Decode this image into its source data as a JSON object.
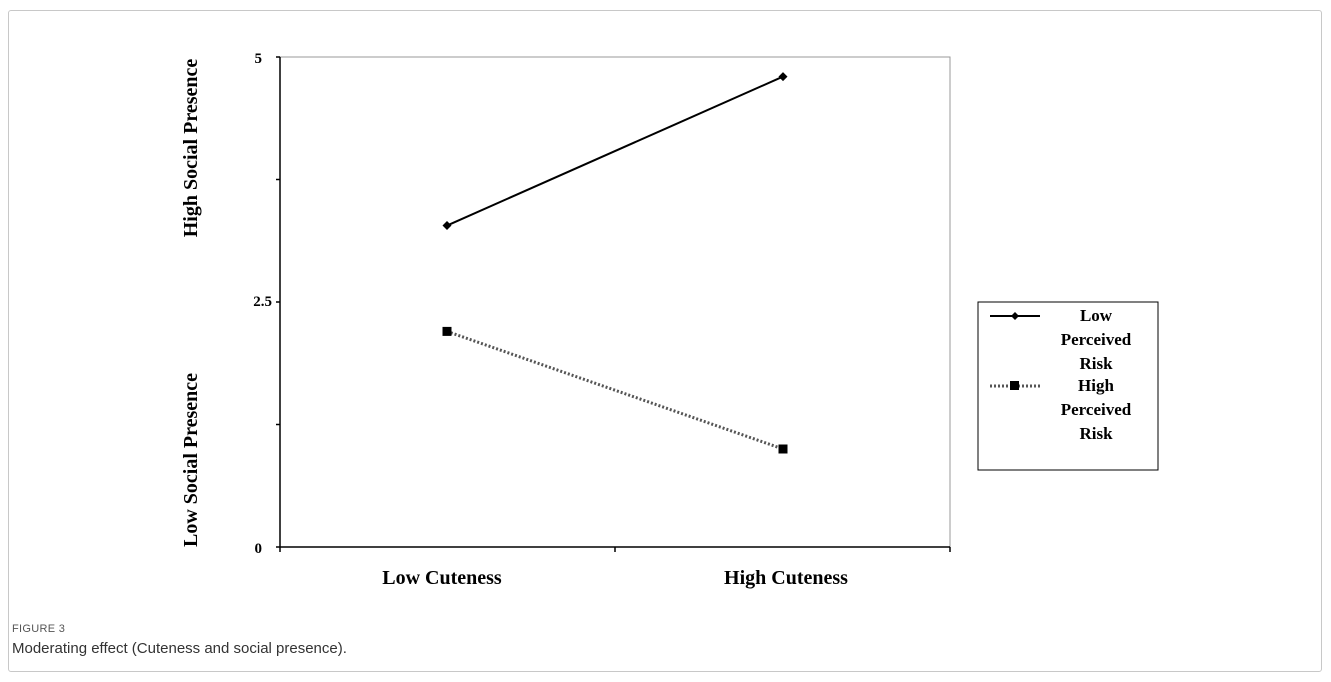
{
  "figure": {
    "label": "FIGURE 3",
    "caption": "Moderating effect (Cuteness and social presence)."
  },
  "chart_data": {
    "type": "line",
    "title": "",
    "categories": [
      "Low Cuteness",
      "High Cuteness"
    ],
    "ylim": [
      0,
      5
    ],
    "yticks": [
      "0",
      "2.5",
      "5"
    ],
    "y_axis_notes": {
      "top": "High Social Presence",
      "bottom": "Low Social Presence"
    },
    "series": [
      {
        "name": "Low Perceived Risk",
        "values": [
          3.28,
          4.8
        ],
        "marker": "diamond",
        "line": "solid",
        "color": "#000000"
      },
      {
        "name": "High Perceived Risk",
        "values": [
          2.2,
          1.0
        ],
        "marker": "square",
        "line": "dotted",
        "color": "#555555"
      }
    ],
    "legend": {
      "placement": "right",
      "entries": [
        [
          "Low",
          "Perceived",
          "Risk"
        ],
        [
          "High",
          "Perceived",
          "Risk"
        ]
      ]
    },
    "grid": false
  }
}
